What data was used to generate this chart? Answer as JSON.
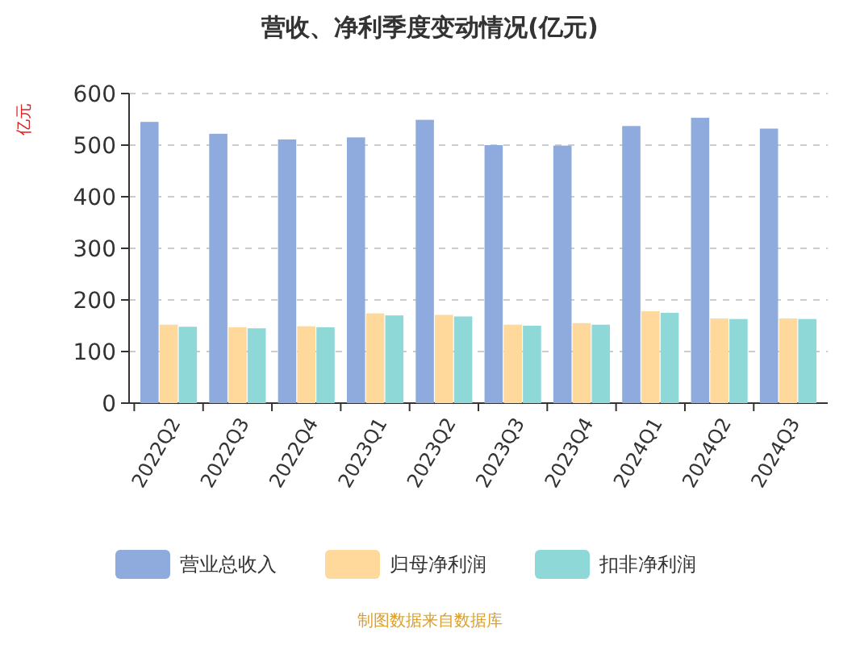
{
  "chart_data": {
    "type": "bar",
    "title": "营收、净利季度变动情况(亿元)",
    "ylabel": "亿元",
    "categories": [
      "2022Q2",
      "2022Q3",
      "2022Q4",
      "2023Q1",
      "2023Q2",
      "2023Q3",
      "2023Q4",
      "2024Q1",
      "2024Q2",
      "2024Q3"
    ],
    "series": [
      {
        "name": "营业总收入",
        "color": "#8faadc",
        "values": [
          545,
          522,
          511,
          515,
          549,
          500,
          499,
          537,
          553,
          532
        ]
      },
      {
        "name": "归母净利润",
        "color": "#ffd89b",
        "values": [
          152,
          147,
          149,
          174,
          171,
          152,
          155,
          178,
          164,
          164
        ]
      },
      {
        "name": "扣非净利润",
        "color": "#8fd8d8",
        "values": [
          148,
          145,
          147,
          170,
          168,
          150,
          152,
          175,
          163,
          163
        ]
      }
    ],
    "ylim": [
      0,
      600
    ],
    "yticks": [
      0,
      100,
      200,
      300,
      400,
      500,
      600
    ],
    "grid": "y",
    "legend": "bottom",
    "annotations": [
      "制图数据来自数据库"
    ]
  }
}
